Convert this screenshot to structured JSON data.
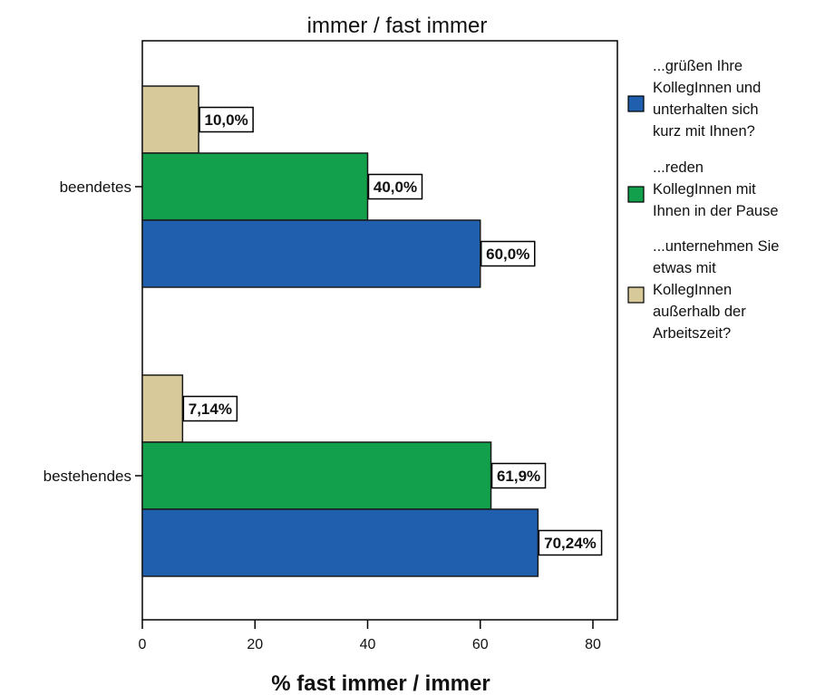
{
  "chart_data": {
    "type": "bar",
    "orientation": "horizontal",
    "title": "immer / fast immer",
    "xlabel": "% fast immer / immer",
    "ylabel": "",
    "xlim": [
      0,
      84
    ],
    "xticks": [
      0,
      20,
      40,
      60,
      80
    ],
    "grid": false,
    "legend_position": "right",
    "categories": [
      "beendetes",
      "bestehendes"
    ],
    "series": [
      {
        "name": "...grüßen Ihre KollegInnen und unterhalten sich kurz mit Ihnen?",
        "name_lines": [
          "...grüßen Ihre",
          "KollegInnen und",
          "unterhalten sich",
          "kurz mit Ihnen?"
        ],
        "color": "#1f5fae",
        "values": [
          60.0,
          70.24
        ],
        "labels": [
          "60,0%",
          "70,24%"
        ]
      },
      {
        "name": "...reden KollegInnen mit Ihnen in der Pause",
        "name_lines": [
          "...reden",
          "KollegInnen mit",
          "Ihnen in der Pause"
        ],
        "color": "#12a04c",
        "values": [
          40.0,
          61.9
        ],
        "labels": [
          "40,0%",
          "61,9%"
        ]
      },
      {
        "name": "...unternehmen Sie etwas mit KollegInnen außerhalb der Arbeitszeit?",
        "name_lines": [
          "...unternehmen Sie",
          "etwas mit",
          "KollegInnen",
          "außerhalb der",
          "Arbeitszeit?"
        ],
        "color": "#d8c99b",
        "values": [
          10.0,
          7.14
        ],
        "labels": [
          "10,0%",
          "7,14%"
        ]
      }
    ]
  }
}
